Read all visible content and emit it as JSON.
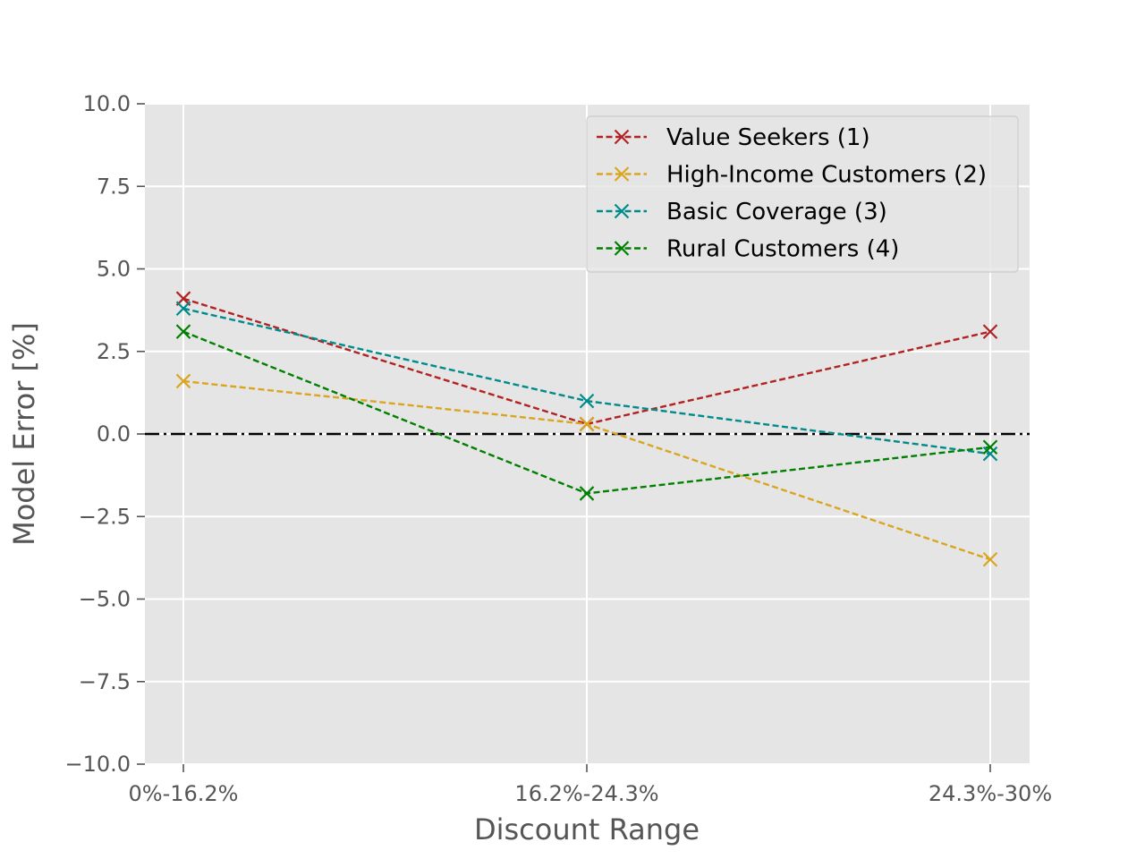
{
  "chart_data": {
    "type": "line",
    "title": "",
    "xlabel": "Discount Range",
    "ylabel": "Model Error [%]",
    "categories": [
      "0%-16.2%",
      "16.2%-24.3%",
      "24.3%-30%"
    ],
    "ylim": [
      -10.0,
      10.0
    ],
    "yticks": [
      "10.0",
      "7.5",
      "5.0",
      "2.5",
      "0.0",
      "−2.5",
      "−5.0",
      "−7.5",
      "−10.0"
    ],
    "grid": true,
    "legend_position": "top-right",
    "reference_line": {
      "y": 0.0,
      "style": "dash-dot",
      "color": "#000000"
    },
    "series": [
      {
        "name": "Value Seekers (1)",
        "color": "#b22222",
        "values": [
          4.1,
          0.3,
          3.1
        ]
      },
      {
        "name": "High-Income Customers (2)",
        "color": "#daa520",
        "values": [
          1.6,
          0.3,
          -3.8
        ]
      },
      {
        "name": "Basic Coverage (3)",
        "color": "#008b8b",
        "values": [
          3.8,
          1.0,
          -0.6
        ]
      },
      {
        "name": "Rural Customers (4)",
        "color": "#008000",
        "values": [
          3.1,
          -1.8,
          -0.4
        ]
      }
    ]
  }
}
